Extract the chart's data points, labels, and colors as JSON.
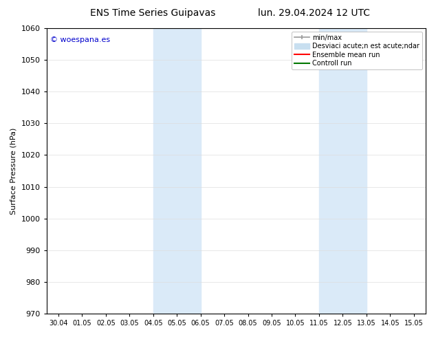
{
  "title_left": "ENS Time Series Guipavas",
  "title_right": "lun. 29.04.2024 12 UTC",
  "ylabel": "Surface Pressure (hPa)",
  "watermark": "© woespana.es",
  "watermark_color": "#0000cc",
  "background_color": "#ffffff",
  "plot_bg_color": "#ffffff",
  "shaded_regions": [
    {
      "xmin": 4.0,
      "xmax": 5.0,
      "color": "#daeaf8"
    },
    {
      "xmin": 5.0,
      "xmax": 6.0,
      "color": "#daeaf8"
    },
    {
      "xmin": 11.0,
      "xmax": 12.0,
      "color": "#daeaf8"
    },
    {
      "xmin": 12.0,
      "xmax": 13.0,
      "color": "#daeaf8"
    }
  ],
  "xlim": [
    -0.5,
    15.5
  ],
  "ylim": [
    970,
    1060
  ],
  "yticks": [
    970,
    980,
    990,
    1000,
    1010,
    1020,
    1030,
    1040,
    1050,
    1060
  ],
  "xtick_labels": [
    "30.04",
    "01.05",
    "02.05",
    "03.05",
    "04.05",
    "05.05",
    "06.05",
    "07.05",
    "08.05",
    "09.05",
    "10.05",
    "11.05",
    "12.05",
    "13.05",
    "14.05",
    "15.05"
  ],
  "xtick_positions": [
    0,
    1,
    2,
    3,
    4,
    5,
    6,
    7,
    8,
    9,
    10,
    11,
    12,
    13,
    14,
    15
  ],
  "legend_label_minmax": "min/max",
  "legend_label_std": "Desviaci acute;n est acute;ndar",
  "legend_label_ens": "Ensemble mean run",
  "legend_label_ctrl": "Controll run",
  "legend_color_minmax": "#999999",
  "legend_color_std": "#c8dff0",
  "legend_color_ens": "#ff0000",
  "legend_color_ctrl": "#007700",
  "grid_color": "#dddddd",
  "spine_color": "#000000",
  "font_size": 8,
  "title_font_size": 10,
  "watermark_font_size": 8
}
